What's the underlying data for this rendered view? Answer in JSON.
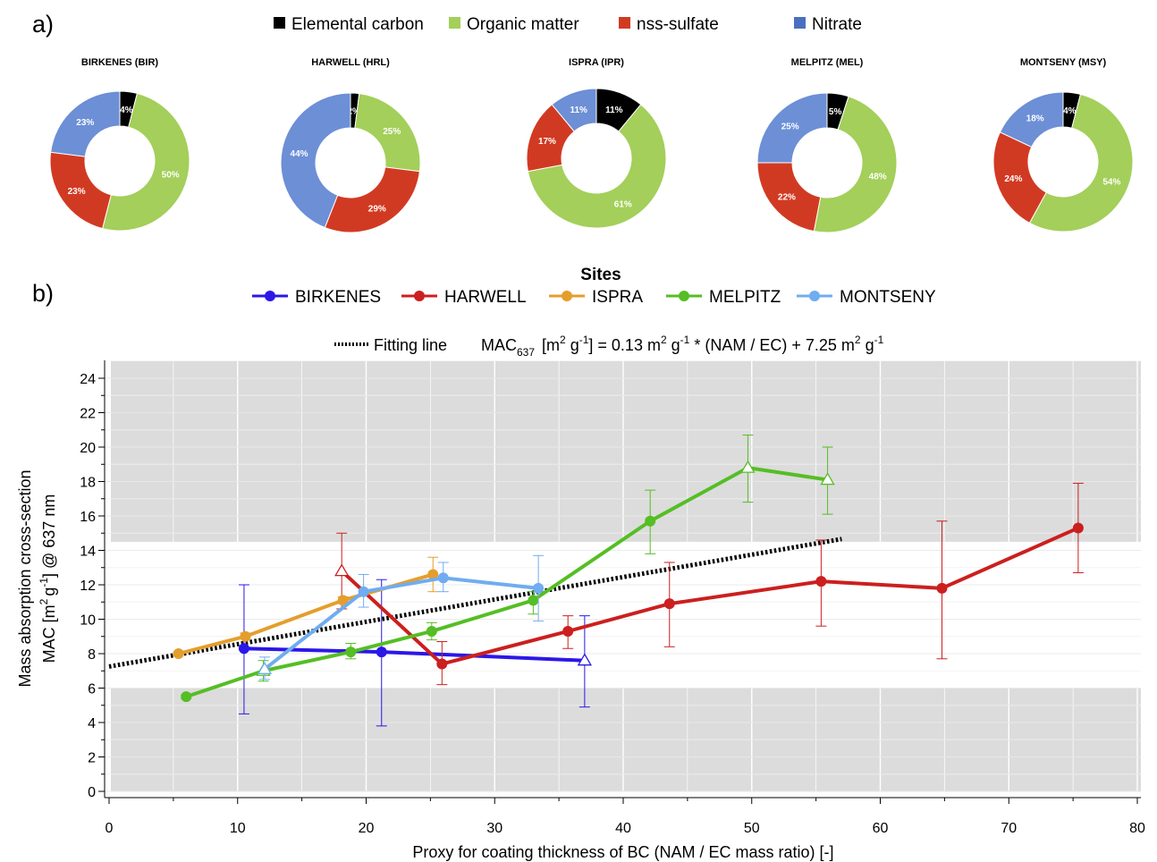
{
  "panel_a_label": "a)",
  "panel_b_label": "b)",
  "composition_legend": [
    {
      "label": "Elemental carbon",
      "color": "#000000"
    },
    {
      "label": "Organic matter",
      "color": "#a3cf5a"
    },
    {
      "label": "nss-sulfate",
      "color": "#d13a22"
    },
    {
      "label": "Nitrate",
      "color": "#4a6fc1"
    }
  ],
  "sites_legend_title": "Sites",
  "fit_legend": {
    "label": "Fitting line",
    "eq_prefix": "MAC",
    "eq_sub": "637",
    "eq_l1": "[m",
    "eq_l2": "g",
    "eq_l3": "] = 0.13 m",
    "eq_l4": "g",
    "eq_l5": "* (NAM / EC) + 7.25 m",
    "eq_l6": "g",
    "sup2": "2",
    "supm1": "-1"
  },
  "ylabel_line1": "Mass absorption cross-section",
  "ylabel_line2_parts": {
    "a": "MAC [m",
    "b": "2",
    "c": "g",
    "d": "-1",
    "e": "] @ 637 nm"
  },
  "chart_data": [
    {
      "type": "pie",
      "donut": true,
      "colors": {
        "ec": "#000000",
        "om": "#a3cf5a",
        "sulfate": "#d13a22",
        "nitrate": "#6c8fd6"
      },
      "sites": [
        {
          "title": "BIRKENES (BIR)",
          "slices": [
            {
              "key": "ec",
              "value": 4,
              "label": "4%"
            },
            {
              "key": "om",
              "value": 50,
              "label": "50%"
            },
            {
              "key": "sulfate",
              "value": 23,
              "label": "23%"
            },
            {
              "key": "nitrate",
              "value": 23,
              "label": "23%"
            }
          ]
        },
        {
          "title": "HARWELL (HRL)",
          "slices": [
            {
              "key": "ec",
              "value": 2,
              "label": "2%"
            },
            {
              "key": "om",
              "value": 25,
              "label": "25%"
            },
            {
              "key": "sulfate",
              "value": 29,
              "label": "29%"
            },
            {
              "key": "nitrate",
              "value": 44,
              "label": "44%"
            }
          ]
        },
        {
          "title": "ISPRA (IPR)",
          "slices": [
            {
              "key": "ec",
              "value": 11,
              "label": "11%"
            },
            {
              "key": "om",
              "value": 61,
              "label": "61%"
            },
            {
              "key": "sulfate",
              "value": 17,
              "label": "17%"
            },
            {
              "key": "nitrate",
              "value": 11,
              "label": "11%"
            }
          ]
        },
        {
          "title": "MELPITZ (MEL)",
          "slices": [
            {
              "key": "ec",
              "value": 5,
              "label": "5%"
            },
            {
              "key": "om",
              "value": 48,
              "label": "48%"
            },
            {
              "key": "sulfate",
              "value": 22,
              "label": "22%"
            },
            {
              "key": "nitrate",
              "value": 25,
              "label": "25%"
            }
          ]
        },
        {
          "title": "MONTSENY (MSY)",
          "slices": [
            {
              "key": "ec",
              "value": 4,
              "label": "4%"
            },
            {
              "key": "om",
              "value": 54,
              "label": "54%"
            },
            {
              "key": "sulfate",
              "value": 24,
              "label": "24%"
            },
            {
              "key": "nitrate",
              "value": 18,
              "label": "18%"
            }
          ]
        }
      ]
    },
    {
      "type": "line",
      "xlabel": "Proxy for coating thickness of BC (NAM / EC mass ratio) [-]",
      "xlim": [
        0,
        80
      ],
      "ylim": [
        0,
        24
      ],
      "xticks": [
        0,
        10,
        20,
        30,
        40,
        50,
        60,
        70,
        80
      ],
      "yticks": [
        0,
        2,
        4,
        6,
        8,
        10,
        12,
        14,
        16,
        18,
        20,
        22,
        24
      ],
      "grid": true,
      "shaded_bands": [
        [
          0,
          6
        ],
        [
          14.5,
          25
        ]
      ],
      "legend_placement": "top-center",
      "series": [
        {
          "name": "BIRKENES",
          "color": "#2b17e8",
          "points": [
            {
              "x": 10.5,
              "y": 8.3,
              "lo": 4.5,
              "hi": 12.0
            },
            {
              "x": 21.2,
              "y": 8.1,
              "lo": 3.8,
              "hi": 12.3
            },
            {
              "x": 37.0,
              "y": 7.6,
              "lo": 4.9,
              "hi": 10.2,
              "marker": "triangle"
            }
          ]
        },
        {
          "name": "HARWELL",
          "color": "#cc1f1f",
          "points": [
            {
              "x": 18.1,
              "y": 12.8,
              "lo": 10.6,
              "hi": 15.0,
              "marker": "triangle"
            },
            {
              "x": 25.9,
              "y": 7.4,
              "lo": 6.2,
              "hi": 8.7
            },
            {
              "x": 35.7,
              "y": 9.3,
              "lo": 8.3,
              "hi": 10.2
            },
            {
              "x": 43.6,
              "y": 10.9,
              "lo": 8.4,
              "hi": 13.3
            },
            {
              "x": 55.4,
              "y": 12.2,
              "lo": 9.6,
              "hi": 14.6
            },
            {
              "x": 64.8,
              "y": 11.8,
              "lo": 7.7,
              "hi": 15.7
            },
            {
              "x": 75.4,
              "y": 15.3,
              "lo": 12.7,
              "hi": 17.9
            }
          ]
        },
        {
          "name": "ISPRA",
          "color": "#e59e2c",
          "points": [
            {
              "x": 5.4,
              "y": 8.0,
              "lo": 7.9,
              "hi": 8.1
            },
            {
              "x": 10.6,
              "y": 9.0,
              "lo": 8.9,
              "hi": 9.2
            },
            {
              "x": 18.2,
              "y": 11.1,
              "lo": 10.9,
              "hi": 11.3
            },
            {
              "x": 25.2,
              "y": 12.6,
              "lo": 11.6,
              "hi": 13.6
            }
          ]
        },
        {
          "name": "MELPITZ",
          "color": "#55be24",
          "points": [
            {
              "x": 6.0,
              "y": 5.5,
              "lo": 5.4,
              "hi": 5.6
            },
            {
              "x": 12.0,
              "y": 7.0,
              "lo": 6.4,
              "hi": 7.6,
              "marker": "triangle"
            },
            {
              "x": 18.8,
              "y": 8.1,
              "lo": 7.7,
              "hi": 8.6
            },
            {
              "x": 25.1,
              "y": 9.3,
              "lo": 8.8,
              "hi": 9.8
            },
            {
              "x": 33.0,
              "y": 11.1,
              "lo": 10.3,
              "hi": 11.6
            },
            {
              "x": 42.1,
              "y": 15.7,
              "lo": 13.8,
              "hi": 17.5
            },
            {
              "x": 49.7,
              "y": 18.8,
              "lo": 16.8,
              "hi": 20.7,
              "marker": "triangle"
            },
            {
              "x": 55.9,
              "y": 18.1,
              "lo": 16.1,
              "hi": 20.0,
              "marker": "triangle"
            }
          ]
        },
        {
          "name": "MONTSENY",
          "color": "#70acf0",
          "points": [
            {
              "x": 12.1,
              "y": 7.1,
              "lo": 6.5,
              "hi": 7.8,
              "marker": "triangle"
            },
            {
              "x": 19.8,
              "y": 11.6,
              "lo": 10.7,
              "hi": 12.6
            },
            {
              "x": 26.0,
              "y": 12.4,
              "lo": 11.6,
              "hi": 13.3
            },
            {
              "x": 33.4,
              "y": 11.8,
              "lo": 9.9,
              "hi": 13.7
            }
          ]
        }
      ],
      "fit_line": {
        "slope": 0.13,
        "intercept": 7.25,
        "x_range": [
          0,
          57
        ],
        "style": "dotted",
        "color": "#000000"
      }
    }
  ]
}
